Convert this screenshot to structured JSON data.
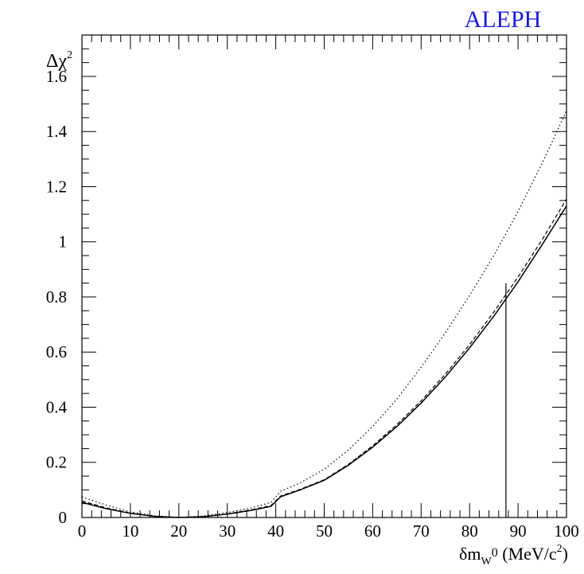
{
  "brand": {
    "text": "ALEPH",
    "color": "#1a1adb"
  },
  "axes": {
    "ylabel": {
      "main": "Δχ",
      "sup": "2"
    },
    "xlabel": {
      "main": "δm",
      "sub": "W",
      "zero": "0",
      "rest": " (MeV/c",
      "sup": "2",
      "close": ")"
    }
  },
  "chart_data": {
    "type": "line",
    "title": "",
    "xlim": [
      0,
      100
    ],
    "ylim": [
      0,
      1.75
    ],
    "x_ticks": [
      0,
      10,
      20,
      30,
      40,
      50,
      60,
      70,
      80,
      90,
      100
    ],
    "x_tick_labels": [
      "0",
      "10",
      "20",
      "30",
      "40",
      "50",
      "60",
      "70",
      "80",
      "90",
      "100"
    ],
    "y_ticks": [
      0,
      0.2,
      0.4,
      0.6,
      0.8,
      1,
      1.2,
      1.4,
      1.6
    ],
    "y_tick_labels": [
      "0",
      "0.2",
      "0.4",
      "0.6",
      "0.8",
      "1",
      "1.2",
      "1.4",
      "1.6"
    ],
    "grid": false,
    "legend": "none",
    "series": [
      {
        "style": "solid",
        "points": [
          [
            0,
            0.055
          ],
          [
            5,
            0.032
          ],
          [
            10,
            0.015
          ],
          [
            15,
            0.004
          ],
          [
            20,
            0.0
          ],
          [
            25,
            0.003
          ],
          [
            30,
            0.012
          ],
          [
            35,
            0.026
          ],
          [
            39,
            0.04
          ],
          [
            41,
            0.075
          ],
          [
            45,
            0.1
          ],
          [
            50,
            0.135
          ],
          [
            55,
            0.19
          ],
          [
            60,
            0.255
          ],
          [
            65,
            0.33
          ],
          [
            70,
            0.415
          ],
          [
            75,
            0.51
          ],
          [
            80,
            0.615
          ],
          [
            85,
            0.73
          ],
          [
            90,
            0.855
          ],
          [
            95,
            0.99
          ],
          [
            100,
            1.13
          ]
        ]
      },
      {
        "style": "dashed",
        "points": [
          [
            0,
            0.06
          ],
          [
            5,
            0.035
          ],
          [
            10,
            0.016
          ],
          [
            15,
            0.004
          ],
          [
            20,
            0.0
          ],
          [
            25,
            0.003
          ],
          [
            30,
            0.013
          ],
          [
            35,
            0.028
          ],
          [
            39,
            0.043
          ],
          [
            41,
            0.078
          ],
          [
            45,
            0.102
          ],
          [
            50,
            0.137
          ],
          [
            55,
            0.193
          ],
          [
            60,
            0.26
          ],
          [
            65,
            0.337
          ],
          [
            70,
            0.423
          ],
          [
            75,
            0.52
          ],
          [
            80,
            0.627
          ],
          [
            85,
            0.745
          ],
          [
            90,
            0.872
          ],
          [
            95,
            1.008
          ],
          [
            100,
            1.155
          ]
        ]
      },
      {
        "style": "dotted",
        "points": [
          [
            0,
            0.075
          ],
          [
            5,
            0.045
          ],
          [
            10,
            0.02
          ],
          [
            15,
            0.006
          ],
          [
            20,
            0.0
          ],
          [
            25,
            0.005
          ],
          [
            30,
            0.018
          ],
          [
            35,
            0.035
          ],
          [
            39,
            0.055
          ],
          [
            41,
            0.095
          ],
          [
            45,
            0.125
          ],
          [
            50,
            0.175
          ],
          [
            55,
            0.245
          ],
          [
            60,
            0.33
          ],
          [
            65,
            0.43
          ],
          [
            70,
            0.545
          ],
          [
            75,
            0.67
          ],
          [
            80,
            0.805
          ],
          [
            85,
            0.95
          ],
          [
            90,
            1.11
          ],
          [
            95,
            1.285
          ],
          [
            100,
            1.475
          ]
        ]
      }
    ],
    "annotations": [
      {
        "type": "vertical_line",
        "x": 87.5,
        "y0": 0,
        "y1": 0.85
      }
    ]
  }
}
